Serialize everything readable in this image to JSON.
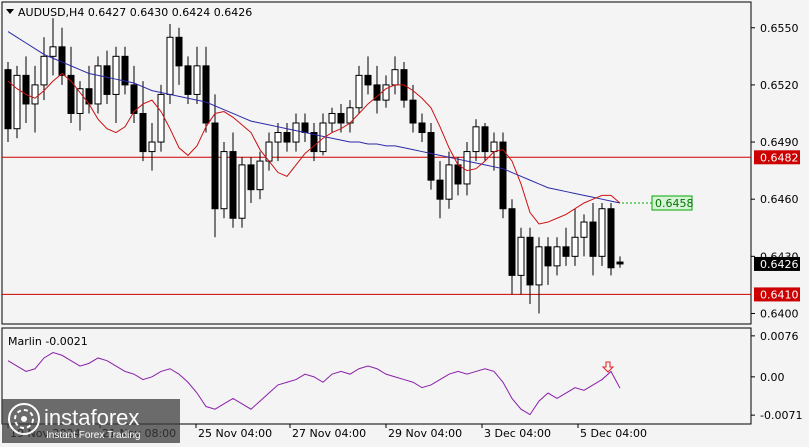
{
  "chart": {
    "symbol_header": "AUDUSD,H4  0.6427 0.6430 0.6424 0.6426",
    "menu_arrow_icon": "triangle-down-icon",
    "price_axis_labels": [
      "0.6550",
      "0.6520",
      "0.6490",
      "0.6460",
      "0.6430",
      "0.6400"
    ],
    "hline_upper": {
      "price": 0.6482,
      "label": "0.6482",
      "color": "#cc0000"
    },
    "hline_lower": {
      "price": 0.641,
      "label": "0.6410",
      "color": "#cc0000"
    },
    "ma_callout": {
      "price": 0.6458,
      "label": "0.6458",
      "color": "#00aa00"
    },
    "current_price": {
      "price": 0.6426,
      "label": "0.6426"
    },
    "time_axis_labels": [
      "19 Nov 2024",
      "21 Nov 08:00",
      "25 Nov 04:00",
      "27 Nov 04:00",
      "29 Nov 04:00",
      "3 Dec 04:00",
      "5 Dec 04:00"
    ],
    "colors": {
      "ma_blue": "#2a2aa8",
      "ma_red": "#cc1111",
      "candle": "#000000",
      "osc": "#8a1fa8",
      "arrow": "#e02020"
    }
  },
  "chart_data": {
    "type": "candlestick",
    "price_range": [
      0.6395,
      0.6563
    ],
    "candles": [
      [
        0.6528,
        0.6532,
        0.649,
        0.6497
      ],
      [
        0.6497,
        0.653,
        0.6492,
        0.6525
      ],
      [
        0.6525,
        0.6535,
        0.65,
        0.651
      ],
      [
        0.651,
        0.653,
        0.6495,
        0.652
      ],
      [
        0.652,
        0.6545,
        0.6512,
        0.6535
      ],
      [
        0.6535,
        0.6555,
        0.6525,
        0.654
      ],
      [
        0.654,
        0.655,
        0.652,
        0.6525
      ],
      [
        0.6525,
        0.654,
        0.65,
        0.6505
      ],
      [
        0.6505,
        0.6522,
        0.6496,
        0.6518
      ],
      [
        0.6518,
        0.653,
        0.6505,
        0.651
      ],
      [
        0.651,
        0.6535,
        0.6505,
        0.653
      ],
      [
        0.653,
        0.6538,
        0.651,
        0.6515
      ],
      [
        0.6515,
        0.654,
        0.65,
        0.6535
      ],
      [
        0.6535,
        0.654,
        0.6515,
        0.652
      ],
      [
        0.652,
        0.653,
        0.65,
        0.6505
      ],
      [
        0.6505,
        0.6522,
        0.648,
        0.6485
      ],
      [
        0.6485,
        0.65,
        0.6475,
        0.649
      ],
      [
        0.649,
        0.652,
        0.6485,
        0.6515
      ],
      [
        0.6515,
        0.6552,
        0.651,
        0.6545
      ],
      [
        0.6545,
        0.655,
        0.652,
        0.653
      ],
      [
        0.653,
        0.6535,
        0.651,
        0.6515
      ],
      [
        0.6515,
        0.654,
        0.651,
        0.653
      ],
      [
        0.653,
        0.654,
        0.6495,
        0.65
      ],
      [
        0.65,
        0.6515,
        0.644,
        0.6455
      ],
      [
        0.6455,
        0.649,
        0.645,
        0.6485
      ],
      [
        0.6485,
        0.6495,
        0.6445,
        0.645
      ],
      [
        0.645,
        0.6482,
        0.6445,
        0.6478
      ],
      [
        0.6478,
        0.6482,
        0.6458,
        0.6465
      ],
      [
        0.6465,
        0.6485,
        0.646,
        0.648
      ],
      [
        0.648,
        0.6495,
        0.6475,
        0.649
      ],
      [
        0.649,
        0.65,
        0.648,
        0.6495
      ],
      [
        0.6495,
        0.65,
        0.6485,
        0.649
      ],
      [
        0.649,
        0.6505,
        0.6485,
        0.65
      ],
      [
        0.65,
        0.6505,
        0.649,
        0.6495
      ],
      [
        0.6495,
        0.65,
        0.648,
        0.6485
      ],
      [
        0.6485,
        0.6505,
        0.6483,
        0.65
      ],
      [
        0.65,
        0.6508,
        0.6495,
        0.6505
      ],
      [
        0.6505,
        0.651,
        0.6495,
        0.65
      ],
      [
        0.65,
        0.6512,
        0.6495,
        0.6508
      ],
      [
        0.6508,
        0.653,
        0.6505,
        0.6525
      ],
      [
        0.6525,
        0.6535,
        0.6515,
        0.652
      ],
      [
        0.652,
        0.653,
        0.6505,
        0.6512
      ],
      [
        0.6512,
        0.6525,
        0.6508,
        0.652
      ],
      [
        0.652,
        0.6535,
        0.6515,
        0.6528
      ],
      [
        0.6528,
        0.6532,
        0.6508,
        0.6512
      ],
      [
        0.6512,
        0.652,
        0.6495,
        0.65
      ],
      [
        0.65,
        0.6505,
        0.649,
        0.6495
      ],
      [
        0.6495,
        0.65,
        0.6465,
        0.647
      ],
      [
        0.647,
        0.648,
        0.645,
        0.646
      ],
      [
        0.646,
        0.6485,
        0.6455,
        0.6478
      ],
      [
        0.6478,
        0.6482,
        0.6462,
        0.6468
      ],
      [
        0.6468,
        0.649,
        0.6462,
        0.6485
      ],
      [
        0.6485,
        0.6502,
        0.648,
        0.6498
      ],
      [
        0.6498,
        0.65,
        0.648,
        0.6485
      ],
      [
        0.6485,
        0.6495,
        0.6475,
        0.649
      ],
      [
        0.649,
        0.6495,
        0.645,
        0.6455
      ],
      [
        0.6455,
        0.646,
        0.641,
        0.642
      ],
      [
        0.642,
        0.6445,
        0.641,
        0.644
      ],
      [
        0.644,
        0.6445,
        0.6405,
        0.6415
      ],
      [
        0.6415,
        0.644,
        0.64,
        0.6435
      ],
      [
        0.6435,
        0.644,
        0.6415,
        0.6425
      ],
      [
        0.6425,
        0.644,
        0.642,
        0.6435
      ],
      [
        0.6435,
        0.6445,
        0.6425,
        0.643
      ],
      [
        0.643,
        0.6455,
        0.6425,
        0.644
      ],
      [
        0.644,
        0.6452,
        0.643,
        0.6448
      ],
      [
        0.6448,
        0.6458,
        0.642,
        0.643
      ],
      [
        0.643,
        0.6458,
        0.6425,
        0.6455
      ],
      [
        0.6455,
        0.6458,
        0.642,
        0.6424
      ],
      [
        0.6427,
        0.643,
        0.6424,
        0.6426
      ]
    ],
    "ma_slow": [
      0.6548,
      0.6545,
      0.6542,
      0.6539,
      0.6536,
      0.6534,
      0.6532,
      0.653,
      0.6528,
      0.6526,
      0.6525,
      0.6524,
      0.6523,
      0.6522,
      0.6521,
      0.6519,
      0.6517,
      0.6516,
      0.6515,
      0.6514,
      0.6513,
      0.6512,
      0.6511,
      0.6509,
      0.6507,
      0.6505,
      0.6503,
      0.6501,
      0.65,
      0.6499,
      0.6498,
      0.6497,
      0.6496,
      0.6495,
      0.6494,
      0.6493,
      0.6492,
      0.6491,
      0.649,
      0.649,
      0.6489,
      0.6489,
      0.6488,
      0.6488,
      0.6487,
      0.6486,
      0.6485,
      0.6484,
      0.6483,
      0.6482,
      0.6481,
      0.648,
      0.6479,
      0.6478,
      0.6477,
      0.6476,
      0.6474,
      0.6472,
      0.647,
      0.6468,
      0.6466,
      0.6465,
      0.6464,
      0.6463,
      0.6462,
      0.6461,
      0.646,
      0.6459,
      0.6458
    ],
    "ma_fast": [
      0.6522,
      0.6518,
      0.6515,
      0.6513,
      0.6517,
      0.6522,
      0.6526,
      0.6522,
      0.6516,
      0.651,
      0.6502,
      0.6497,
      0.6495,
      0.6498,
      0.6506,
      0.651,
      0.6512,
      0.6506,
      0.6497,
      0.6487,
      0.6483,
      0.6488,
      0.6498,
      0.6505,
      0.6506,
      0.6503,
      0.6499,
      0.6495,
      0.6486,
      0.648,
      0.6474,
      0.6472,
      0.6478,
      0.6484,
      0.6488,
      0.6492,
      0.6495,
      0.6497,
      0.65,
      0.6505,
      0.651,
      0.6514,
      0.6518,
      0.652,
      0.652,
      0.6517,
      0.6513,
      0.6508,
      0.6498,
      0.6487,
      0.6478,
      0.6475,
      0.6476,
      0.648,
      0.6485,
      0.6486,
      0.648,
      0.6468,
      0.6453,
      0.6447,
      0.6448,
      0.645,
      0.6452,
      0.6455,
      0.6458,
      0.646,
      0.6462,
      0.6462,
      0.6458
    ],
    "oscillator": {
      "label": "Marlin -0.0021",
      "axis_labels": [
        "0.0076",
        "0.00",
        "-0.0071"
      ],
      "range": [
        -0.008,
        0.0085
      ],
      "values": [
        0.003,
        0.002,
        0.001,
        0.0015,
        0.0035,
        0.0045,
        0.004,
        0.003,
        0.002,
        0.0025,
        0.0035,
        0.003,
        0.002,
        0.001,
        0.0005,
        -0.0005,
        0.0,
        0.001,
        0.0015,
        0.0005,
        -0.001,
        -0.003,
        -0.0055,
        -0.006,
        -0.005,
        -0.004,
        -0.005,
        -0.006,
        -0.0045,
        -0.003,
        -0.0015,
        -0.001,
        -0.0005,
        0.0005,
        0.0,
        -0.001,
        0.0005,
        0.001,
        0.0005,
        0.0015,
        0.002,
        0.0015,
        0.0005,
        0.0,
        -0.0005,
        -0.001,
        -0.002,
        -0.0015,
        -0.0005,
        0.0005,
        0.001,
        0.0005,
        0.001,
        0.0015,
        0.001,
        -0.001,
        -0.004,
        -0.006,
        -0.007,
        -0.0045,
        -0.003,
        -0.004,
        -0.003,
        -0.002,
        -0.0025,
        -0.0015,
        -0.0005,
        0.001,
        -0.0021
      ]
    }
  },
  "watermark": {
    "brand": "instaforex",
    "tagline": "Instant Forex Trading",
    "icon": "instaforex-logo-icon"
  }
}
